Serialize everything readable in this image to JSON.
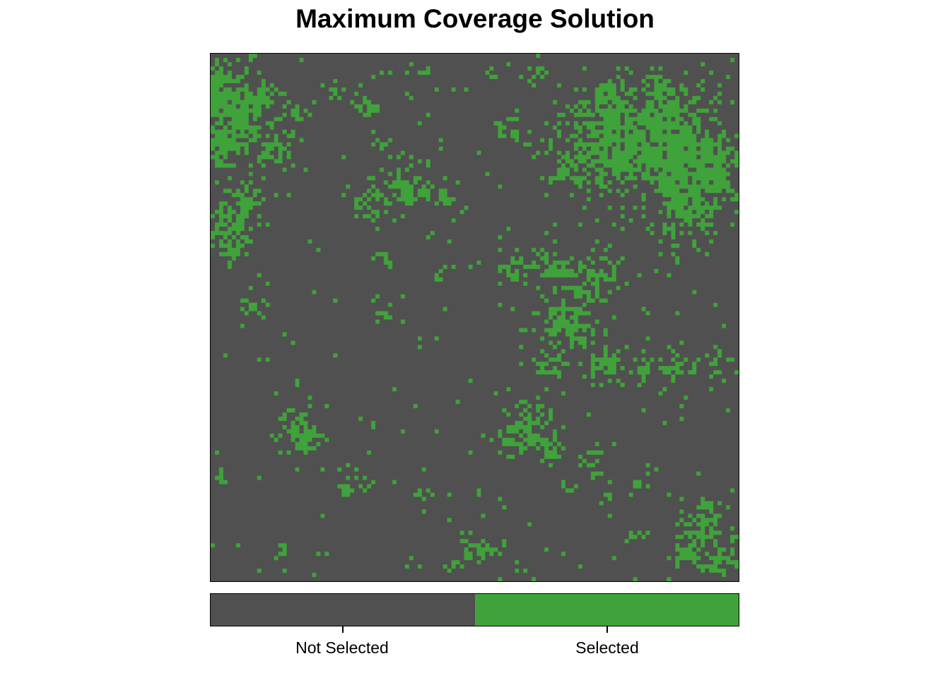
{
  "title": "Maximum Coverage Solution",
  "colors": {
    "not_selected": "#505050",
    "selected": "#3fa23a",
    "border": "#000000"
  },
  "legend": {
    "items": [
      {
        "label": "Not Selected",
        "color": "#505050"
      },
      {
        "label": "Selected",
        "color": "#3fa23a"
      }
    ]
  },
  "map": {
    "type": "binary-raster",
    "grid_columns": 125,
    "grid_rows": 125
  }
}
